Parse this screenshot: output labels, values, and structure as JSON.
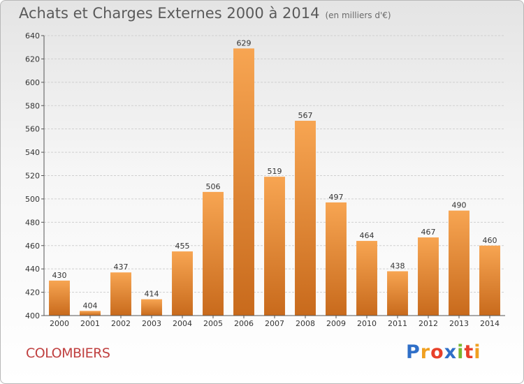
{
  "header": {
    "title": "Achats et Charges Externes 2000 à 2014",
    "subtitle": "(en milliers d'€)"
  },
  "footer": {
    "place": "COLOMBIERS",
    "logo": [
      "P",
      "r",
      "o",
      "x",
      "i",
      "t",
      "i"
    ],
    "logo_colors": [
      "#2f6fc8",
      "#f0a020",
      "#e8402a",
      "#2f6fc8",
      "#78b830",
      "#e8402a",
      "#f0a020"
    ]
  },
  "chart_data": {
    "type": "bar",
    "title": "Achats et Charges Externes 2000 à 2014",
    "subtitle": "(en milliers d'€)",
    "categories": [
      "2000",
      "2001",
      "2002",
      "2003",
      "2004",
      "2005",
      "2006",
      "2007",
      "2008",
      "2009",
      "2010",
      "2011",
      "2012",
      "2013",
      "2014"
    ],
    "values": [
      430,
      404,
      437,
      414,
      455,
      506,
      629,
      519,
      567,
      497,
      464,
      438,
      467,
      490,
      460
    ],
    "ylim": [
      400,
      640
    ],
    "yticks": [
      400,
      420,
      440,
      460,
      480,
      500,
      520,
      540,
      560,
      580,
      600,
      620,
      640
    ],
    "grid": true,
    "bar_color_top": "#f7a552",
    "bar_color_bottom": "#c86a1c",
    "legend": "none"
  }
}
